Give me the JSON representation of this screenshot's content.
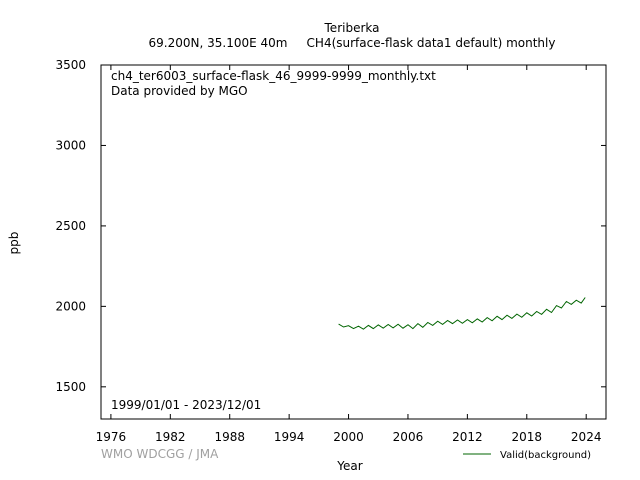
{
  "chart_data": {
    "type": "line",
    "title": "Teriberka",
    "subtitle": "69.200N, 35.100E 40m     CH4(surface-flask data1 default) monthly",
    "file_label": "ch4_ter6003_surface-flask_46_9999-9999_monthly.txt",
    "provider_label": "Data provided by MGO",
    "period_label": "1999/01/01 - 2023/12/01",
    "xlabel": "Year",
    "ylabel": "ppb",
    "xlim": [
      1975,
      2026
    ],
    "ylim": [
      1300,
      3500
    ],
    "xticks": [
      1976,
      1982,
      1988,
      1994,
      2000,
      2006,
      2012,
      2018,
      2024
    ],
    "yticks": [
      1500,
      2000,
      2500,
      3000,
      3500
    ],
    "grid": false,
    "legend_position": "bottom-right",
    "series": [
      {
        "name": "Valid(background)",
        "color": "#006400",
        "points": [
          [
            1999.0,
            1890
          ],
          [
            1999.5,
            1872
          ],
          [
            2000.0,
            1880
          ],
          [
            2000.5,
            1862
          ],
          [
            2001.0,
            1877
          ],
          [
            2001.5,
            1858
          ],
          [
            2002.0,
            1882
          ],
          [
            2002.5,
            1862
          ],
          [
            2003.0,
            1885
          ],
          [
            2003.5,
            1865
          ],
          [
            2004.0,
            1887
          ],
          [
            2004.5,
            1866
          ],
          [
            2005.0,
            1889
          ],
          [
            2005.5,
            1864
          ],
          [
            2006.0,
            1886
          ],
          [
            2006.5,
            1862
          ],
          [
            2007.0,
            1893
          ],
          [
            2007.5,
            1870
          ],
          [
            2008.0,
            1900
          ],
          [
            2008.5,
            1882
          ],
          [
            2009.0,
            1908
          ],
          [
            2009.5,
            1888
          ],
          [
            2010.0,
            1912
          ],
          [
            2010.5,
            1893
          ],
          [
            2011.0,
            1915
          ],
          [
            2011.5,
            1895
          ],
          [
            2012.0,
            1918
          ],
          [
            2012.5,
            1898
          ],
          [
            2013.0,
            1922
          ],
          [
            2013.5,
            1903
          ],
          [
            2014.0,
            1930
          ],
          [
            2014.5,
            1910
          ],
          [
            2015.0,
            1938
          ],
          [
            2015.5,
            1918
          ],
          [
            2016.0,
            1945
          ],
          [
            2016.5,
            1925
          ],
          [
            2017.0,
            1952
          ],
          [
            2017.5,
            1932
          ],
          [
            2018.0,
            1960
          ],
          [
            2018.5,
            1940
          ],
          [
            2019.0,
            1968
          ],
          [
            2019.5,
            1950
          ],
          [
            2020.0,
            1982
          ],
          [
            2020.5,
            1962
          ],
          [
            2021.0,
            2005
          ],
          [
            2021.5,
            1990
          ],
          [
            2022.0,
            2030
          ],
          [
            2022.5,
            2012
          ],
          [
            2023.0,
            2038
          ],
          [
            2023.5,
            2020
          ],
          [
            2023.9,
            2055
          ]
        ]
      }
    ],
    "credit": "WMO WDCGG / JMA"
  }
}
